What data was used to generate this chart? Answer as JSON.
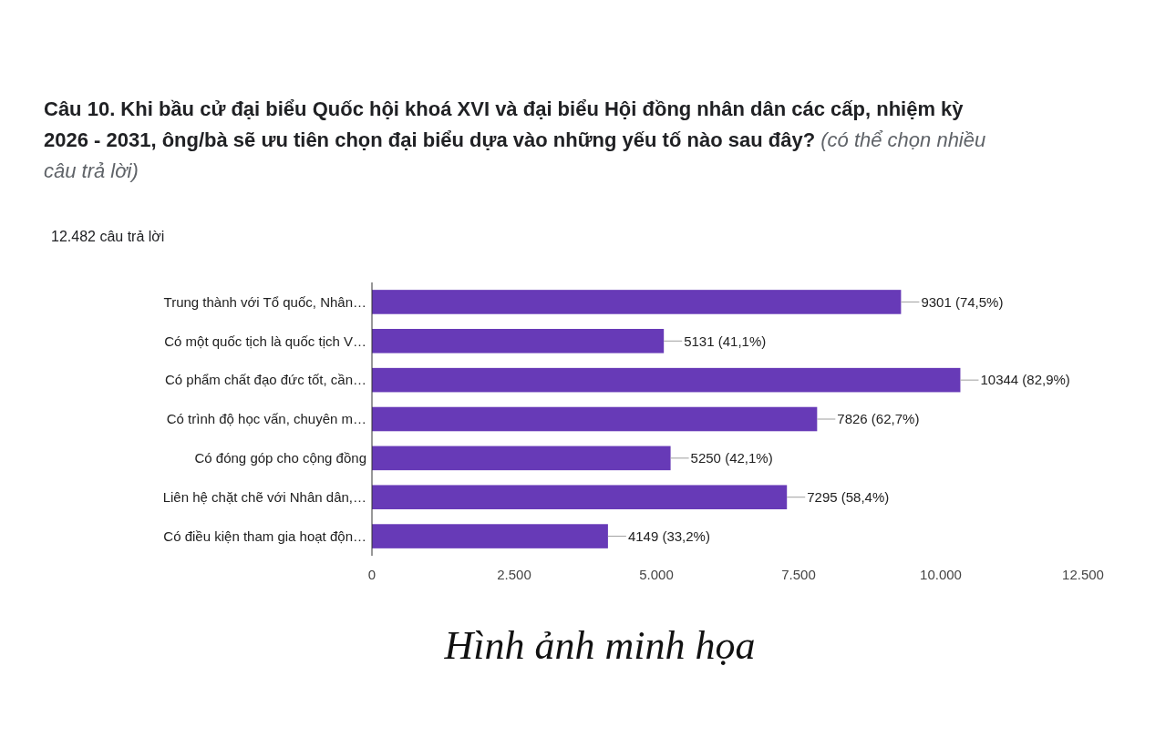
{
  "chart_data": {
    "type": "bar",
    "orientation": "horizontal",
    "title": "Câu 10. Khi bầu cử đại biểu Quốc hội khoá XVI và đại biểu Hội đồng nhân dân các cấp, nhiệm kỳ 2026 - 2031, ông/bà sẽ ưu tiên chọn đại biểu dựa vào những yếu tố nào sau đây? (có thể chọn nhiều câu trả lời)",
    "subtitle": "12.482 câu trả lời",
    "categories": [
      "Trung thành với Tổ quốc, Nhân…",
      "Có một quốc tịch là quốc tịch V…",
      "Có phẩm chất đạo đức tốt, cần…",
      "Có trình độ học vấn, chuyên m…",
      "Có đóng góp cho cộng đồng",
      "Liên hệ chặt chẽ với Nhân dân,…",
      "Có điều kiện tham gia hoạt độn…"
    ],
    "values": [
      9301,
      5131,
      10344,
      7826,
      5250,
      7295,
      4149
    ],
    "value_labels": [
      "9301 (74,5%)",
      "5131 (41,1%)",
      "10344 (82,9%)",
      "7826 (62,7%)",
      "5250 (42,1%)",
      "7295 (58,4%)",
      "4149 (33,2%)"
    ],
    "color": "#673ab7",
    "xlim": [
      0,
      12500
    ],
    "xticks": [
      0,
      {
        "value": 2500,
        "label": "2.500"
      },
      {
        "value": 5000,
        "label": "5.000"
      },
      {
        "value": 7500,
        "label": "7.500"
      },
      {
        "value": 10000,
        "label": "10.000"
      },
      {
        "value": 12500,
        "label": "12.500"
      }
    ],
    "annotations": [
      "Hình ảnh minh họa"
    ]
  }
}
